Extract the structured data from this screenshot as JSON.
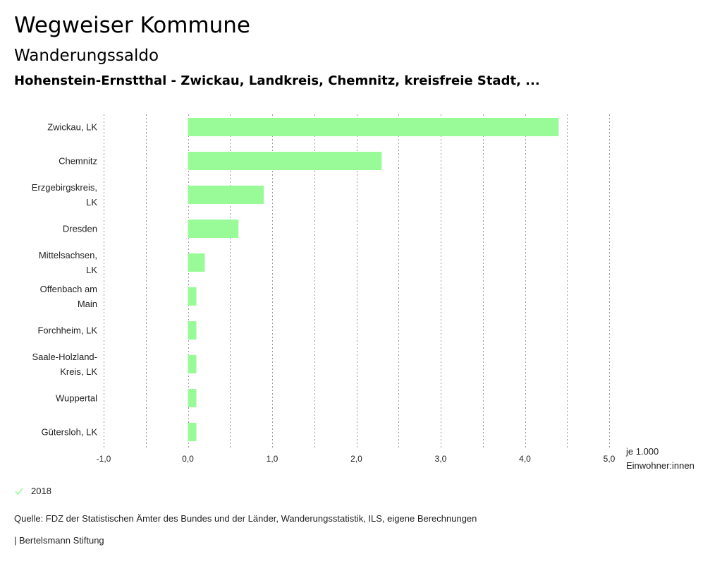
{
  "header": {
    "title": "Wegweiser Kommune",
    "subtitle": "Wanderungssaldo",
    "region": "Hohenstein-Ernstthal - Zwickau, Landkreis, Chemnitz, kreisfreie Stadt, ..."
  },
  "colors": {
    "bar": "#98fb98",
    "grid": "#999999",
    "check": "#98fb98"
  },
  "chart_data": {
    "type": "bar",
    "orientation": "horizontal",
    "categories": [
      [
        "Zwickau, LK"
      ],
      [
        "Chemnitz"
      ],
      [
        "Erzgebirgskreis,",
        "LK"
      ],
      [
        "Dresden"
      ],
      [
        "Mittelsachsen,",
        "LK"
      ],
      [
        "Offenbach am",
        "Main"
      ],
      [
        "Forchheim, LK"
      ],
      [
        "Saale-Holzland-",
        "Kreis, LK"
      ],
      [
        "Wuppertal"
      ],
      [
        "Gütersloh, LK"
      ]
    ],
    "series": [
      {
        "name": "2018",
        "values": [
          4.4,
          2.3,
          0.9,
          0.6,
          0.2,
          0.1,
          0.1,
          0.1,
          0.1,
          0.1
        ]
      }
    ],
    "xlim": [
      -1.0,
      5.0
    ],
    "ticks": [
      "-1,0",
      "0,0",
      "1,0",
      "2,0",
      "3,0",
      "4,0",
      "5,0"
    ],
    "tick_values": [
      -1,
      0,
      1,
      2,
      3,
      4,
      5
    ],
    "xlabel": [
      "je 1.000",
      "Einwohner:innen"
    ],
    "grid": true
  },
  "legend": {
    "label": "2018"
  },
  "footer": {
    "source": "Quelle: FDZ der Statistischen Ämter des Bundes und der Länder, Wanderungsstatistik, ILS, eigene Berechnungen",
    "publisher": "| Bertelsmann Stiftung"
  }
}
